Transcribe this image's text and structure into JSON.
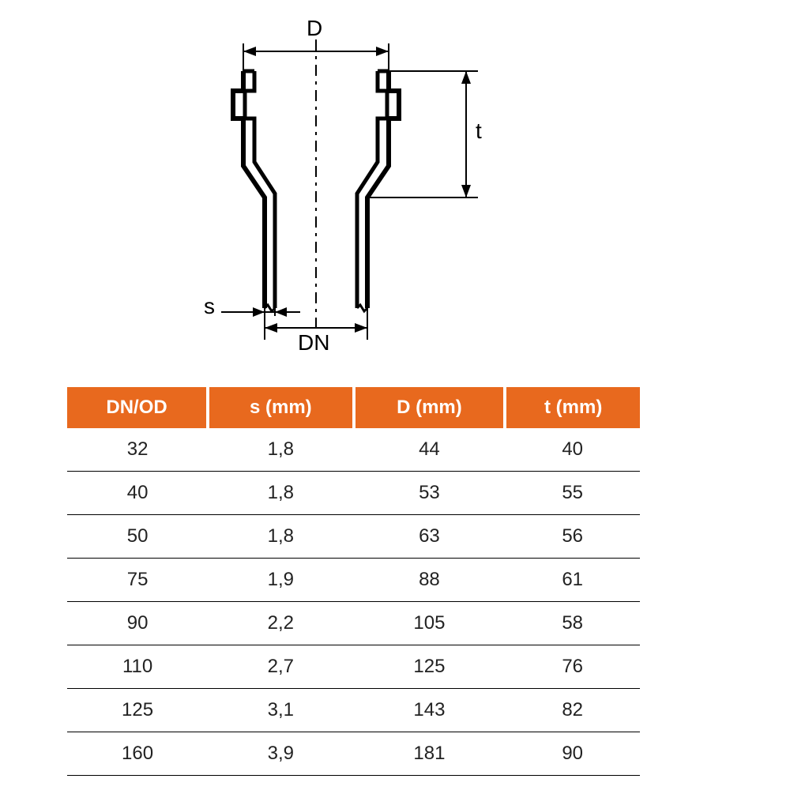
{
  "diagram": {
    "labels": {
      "D": "D",
      "t": "t",
      "s": "s",
      "DN": "DN"
    },
    "stroke_color": "#000000",
    "stroke_width_main": 5,
    "stroke_width_dim": 2,
    "centerline_dash": "12 6 3 6",
    "label_fontsize": 28
  },
  "table": {
    "header_bg": "#e8691e",
    "header_fg": "#ffffff",
    "row_border": "#000000",
    "cell_fontsize": 24,
    "columns": [
      "DN/OD",
      "s (mm)",
      "D (mm)",
      "t (mm)"
    ],
    "rows": [
      [
        "32",
        "1,8",
        "44",
        "40"
      ],
      [
        "40",
        "1,8",
        "53",
        "55"
      ],
      [
        "50",
        "1,8",
        "63",
        "56"
      ],
      [
        "75",
        "1,9",
        "88",
        "61"
      ],
      [
        "90",
        "2,2",
        "105",
        "58"
      ],
      [
        "110",
        "2,7",
        "125",
        "76"
      ],
      [
        "125",
        "3,1",
        "143",
        "82"
      ],
      [
        "160",
        "3,9",
        "181",
        "90"
      ]
    ]
  }
}
